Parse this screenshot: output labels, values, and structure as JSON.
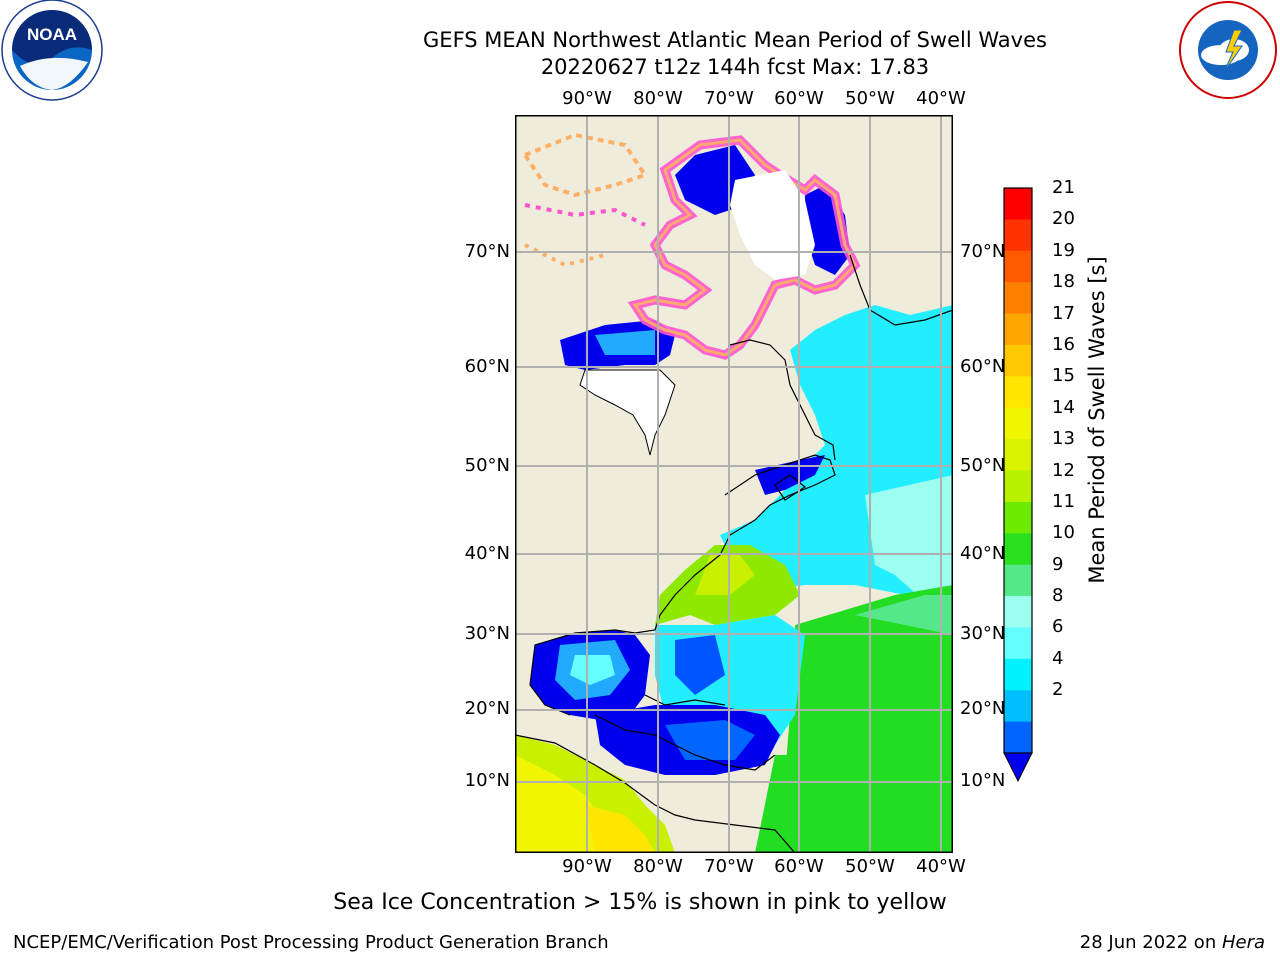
{
  "header": {
    "title_line1": "GEFS MEAN Northwest Atlantic Mean Period of Swell Waves",
    "title_line2": "20220627 t12z 144h fcst   Max: 17.83"
  },
  "logos": {
    "left": "NOAA",
    "left_ring_text": "NATIONAL OCEANIC AND ATMOSPHERIC ADMINISTRATION · U.S. DEPARTMENT OF COMMERCE",
    "right_ring_text": "NATIONAL WEATHER SERVICE"
  },
  "axes": {
    "lon_labels": [
      "90°W",
      "80°W",
      "70°W",
      "60°W",
      "50°W",
      "40°W"
    ],
    "lat_labels": [
      "70°N",
      "60°N",
      "50°N",
      "40°N",
      "30°N",
      "20°N",
      "10°N"
    ]
  },
  "colorbar": {
    "title": "Mean Period of Swell Waves [s]",
    "ticks": [
      "21",
      "20",
      "19",
      "18",
      "17",
      "16",
      "15",
      "14",
      "13",
      "12",
      "11",
      "10",
      "9",
      "8",
      "6",
      "4",
      "2"
    ],
    "colors": [
      "#ff0000",
      "#ff3300",
      "#ff5a00",
      "#ff7f00",
      "#ffa500",
      "#ffc800",
      "#ffe600",
      "#f2f500",
      "#d9f200",
      "#b8f000",
      "#6eea00",
      "#2be01f",
      "#55e88a",
      "#9cfff0",
      "#66ffff",
      "#00f2ff",
      "#00bfff",
      "#0066ff"
    ],
    "under_color": "#0000ee"
  },
  "caption": "Sea Ice Concentration > 15% is shown in pink to yellow",
  "footer": {
    "left": "NCEP/EMC/Verification Post Processing Product Generation Branch",
    "date": "28 Jun 2022 on ",
    "machine": "Hera"
  },
  "colors": {
    "land": "#efecdc",
    "grid": "#b0b0b0",
    "ice_pink": "#ff55cc",
    "ice_orange": "#ffb066",
    "deep_blue": "#0000ee",
    "cyan": "#22eeff",
    "green": "#22dd22",
    "yellow_green": "#c8f000"
  }
}
